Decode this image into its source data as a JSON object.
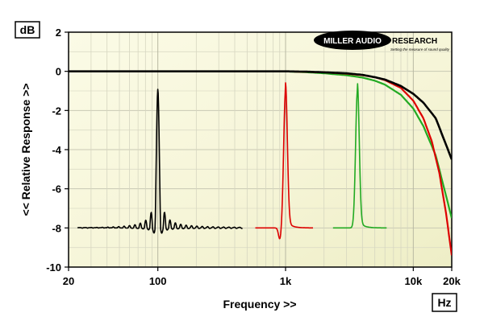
{
  "chart_data": {
    "type": "line",
    "y_unit_label": "dB",
    "x_unit_label": "Hz",
    "xlabel": "Frequency >>",
    "ylabel": "<< Relative Response >>",
    "x_scale": "log",
    "xlim": [
      20,
      20000
    ],
    "ylim": [
      -10,
      2
    ],
    "grid": true,
    "x_ticks": [
      {
        "value": 20,
        "label": "20"
      },
      {
        "value": 100,
        "label": "100"
      },
      {
        "value": 1000,
        "label": "1k"
      },
      {
        "value": 10000,
        "label": "10k"
      },
      {
        "value": 20000,
        "label": "20k"
      }
    ],
    "y_ticks": [
      {
        "value": 2,
        "label": "2"
      },
      {
        "value": 0,
        "label": "0"
      },
      {
        "value": -2,
        "label": "-2"
      },
      {
        "value": -4,
        "label": "-4"
      },
      {
        "value": -6,
        "label": "-6"
      },
      {
        "value": -8,
        "label": "-8"
      },
      {
        "value": -10,
        "label": "-10"
      }
    ],
    "logo": {
      "left_text": "MILLER AUDIO",
      "right_text": "RESEARCH",
      "tagline": "Setting the measure of sound quality"
    },
    "series": [
      {
        "color": "#000000",
        "x": [
          20,
          1000,
          1500,
          2000,
          3000,
          4000,
          5000,
          6000,
          8000,
          10000,
          12000,
          15000,
          20000
        ],
        "y": [
          0,
          0,
          -0.02,
          -0.05,
          -0.1,
          -0.18,
          -0.3,
          -0.42,
          -0.75,
          -1.15,
          -1.6,
          -2.4,
          -4.5
        ]
      },
      {
        "color": "#dd0000",
        "x": [
          20,
          1000,
          2000,
          3000,
          4000,
          5000,
          6000,
          8000,
          10000,
          12000,
          14000,
          16000,
          18000,
          20000
        ],
        "y": [
          0,
          0,
          -0.05,
          -0.12,
          -0.2,
          -0.3,
          -0.45,
          -0.85,
          -1.5,
          -2.4,
          -3.6,
          -5.2,
          -7.2,
          -9.4
        ]
      },
      {
        "color": "#22aa22",
        "x": [
          20,
          1000,
          1500,
          2000,
          3000,
          4000,
          5000,
          6000,
          8000,
          10000,
          12000,
          15000,
          20000
        ],
        "y": [
          0,
          0,
          -0.05,
          -0.1,
          -0.2,
          -0.32,
          -0.48,
          -0.68,
          -1.2,
          -1.9,
          -2.8,
          -4.3,
          -7.5
        ]
      }
    ],
    "impulses": [
      {
        "color": "#000000",
        "x_start": 23.5,
        "x_center": 100,
        "x_end": 460,
        "baseline": -8,
        "peak": -0.9,
        "trough": -9.1,
        "ripple": 0.25,
        "shape": "sinc"
      },
      {
        "color": "#dd0000",
        "x_start": 580,
        "x_center": 1000,
        "x_end": 1650,
        "baseline": -8,
        "peak": -1.0,
        "trough": -8.6,
        "ripple": 0.0,
        "shape": "spike"
      },
      {
        "color": "#22aa22",
        "x_start": 2350,
        "x_center": 3650,
        "x_end": 6200,
        "baseline": -8,
        "peak": -1.0,
        "trough": -8.0,
        "ripple": 0.0,
        "shape": "spike"
      }
    ]
  }
}
